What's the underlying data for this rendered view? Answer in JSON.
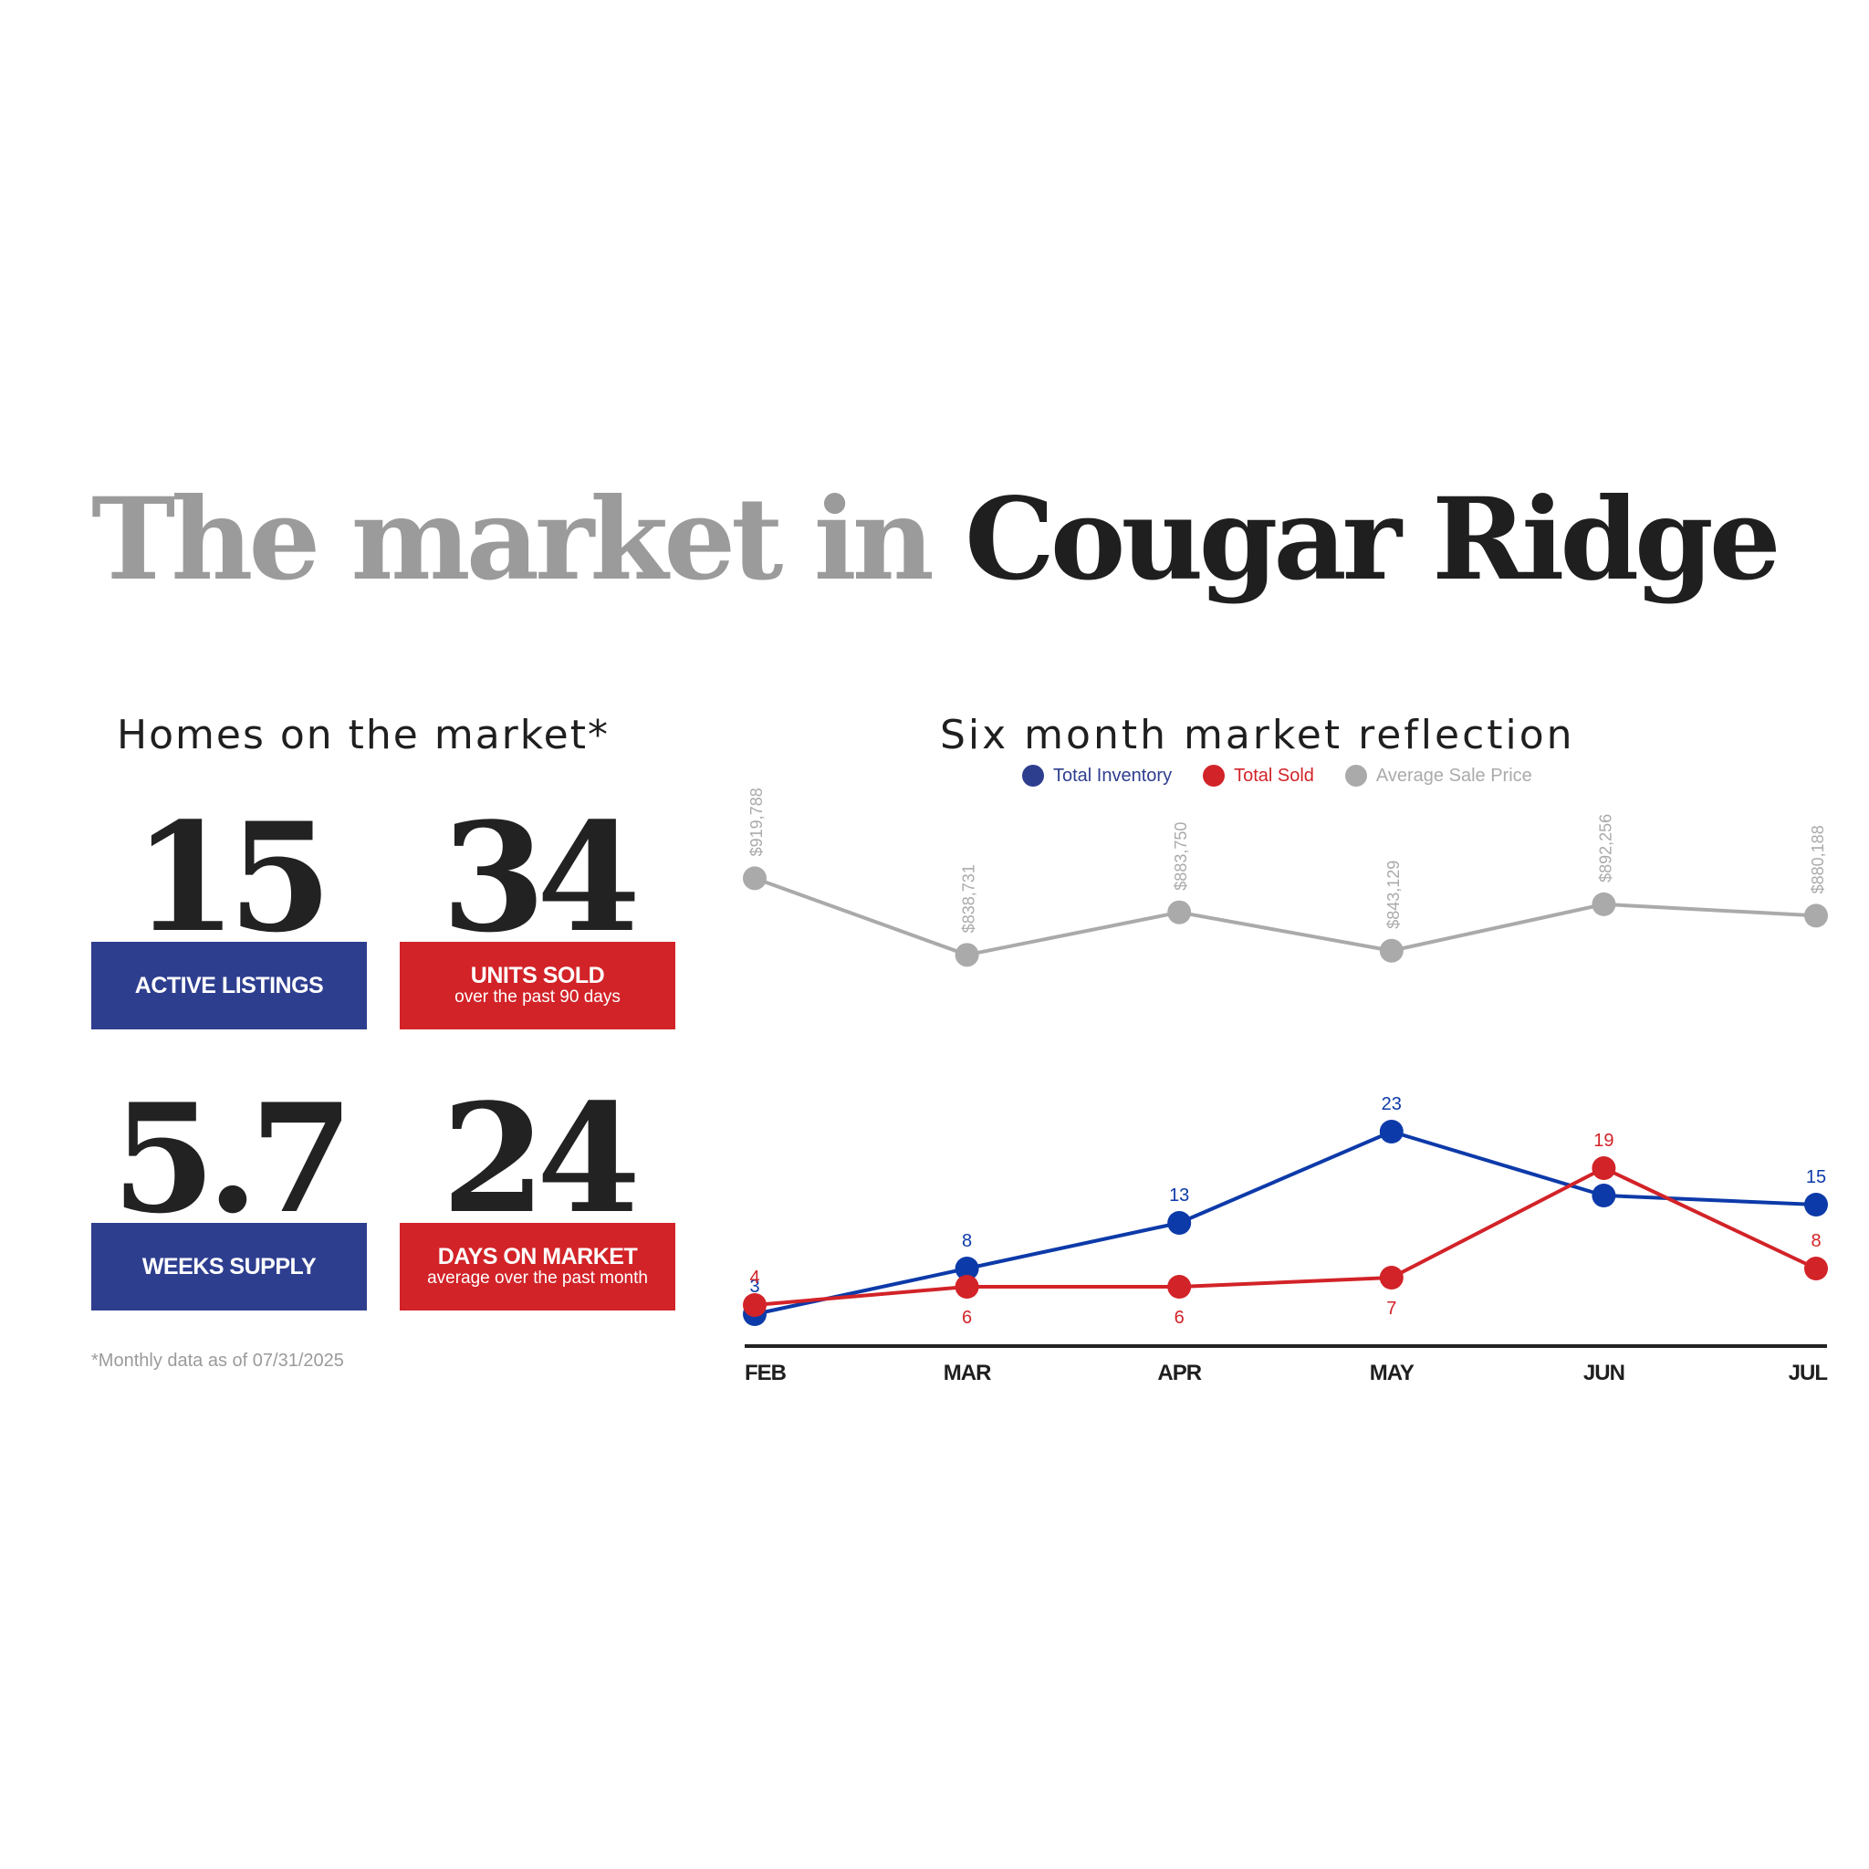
{
  "headline": {
    "part1": "The market in",
    "part2": "Cougar Ridge"
  },
  "homes": {
    "title": "Homes on the market*",
    "stats": [
      {
        "value": "15",
        "label": "ACTIVE LISTINGS",
        "sub": "",
        "color": "#2e3e8f"
      },
      {
        "value": "34",
        "label": "UNITS SOLD",
        "sub": "over the past 90 days",
        "color": "#d22328"
      },
      {
        "value": "5.7",
        "label": "WEEKS SUPPLY",
        "sub": "",
        "color": "#2e3e8f"
      },
      {
        "value": "24",
        "label": "DAYS ON MARKET",
        "sub": "average over the past month",
        "color": "#d22328"
      }
    ],
    "footnote": "*Monthly data as of 07/31/2025"
  },
  "chart_data": {
    "type": "line",
    "title": "Six month market reflection",
    "categories": [
      "FEB",
      "MAR",
      "APR",
      "MAY",
      "JUN",
      "JUL"
    ],
    "legend_position": "top-center",
    "grid": false,
    "series": [
      {
        "name": "Total Inventory",
        "color": "#0d3aa9",
        "values": [
          3,
          8,
          13,
          23,
          16,
          15
        ]
      },
      {
        "name": "Total Sold",
        "color": "#d22328",
        "values": [
          4,
          6,
          6,
          7,
          19,
          8
        ]
      },
      {
        "name": "Average Sale Price",
        "color": "#aaaaaa",
        "values": [
          919788,
          838731,
          883750,
          843129,
          892256,
          880188
        ],
        "labels": [
          "$919,788",
          "$838,731",
          "$883,750",
          "$843,129",
          "$892,256",
          "$880,188"
        ]
      }
    ],
    "ylim_counts": [
      0,
      32
    ],
    "ylim_price": [
      700000,
      980000
    ]
  }
}
